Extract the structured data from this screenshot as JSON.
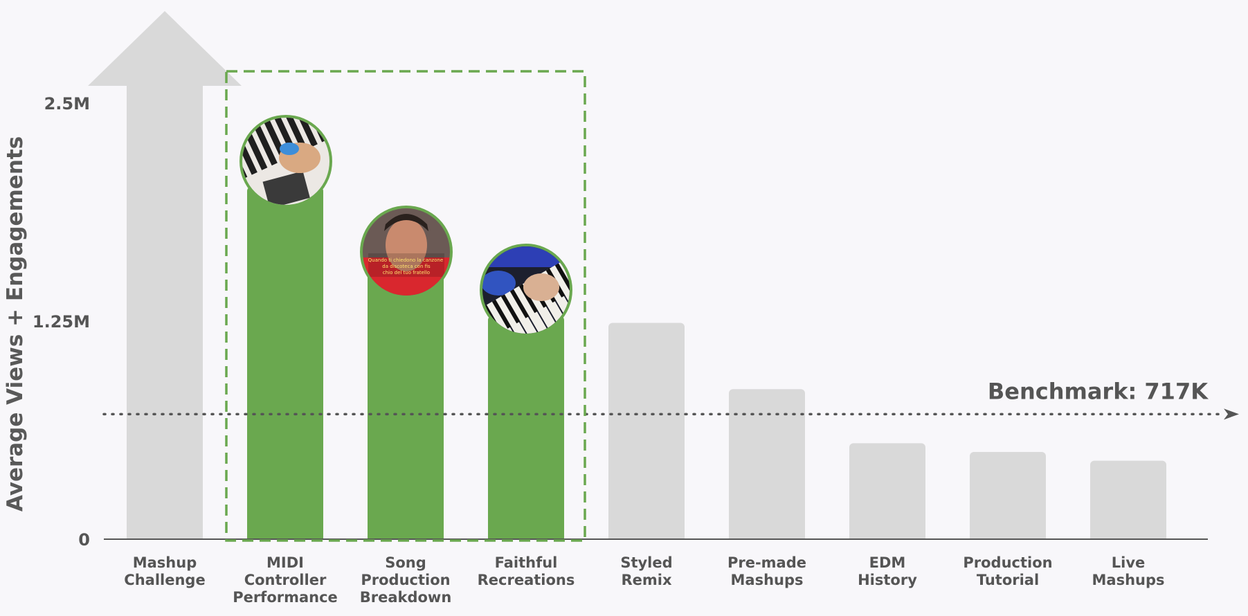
{
  "chart_data": {
    "type": "bar",
    "categories": [
      [
        "Mashup",
        "Challenge"
      ],
      [
        "MIDI",
        "Controller",
        "Performance"
      ],
      [
        "Song",
        "Production",
        "Breakdown"
      ],
      [
        "Faithful",
        "Recreations"
      ],
      [
        "Styled",
        "Remix"
      ],
      [
        "Pre-made",
        "Mashups"
      ],
      [
        "EDM",
        "History"
      ],
      [
        "Production",
        "Tutorial"
      ],
      [
        "Live",
        "Mashups"
      ]
    ],
    "values": [
      3000000,
      2020000,
      1550000,
      1280000,
      1240000,
      860000,
      550000,
      500000,
      450000
    ],
    "highlighted": [
      false,
      true,
      true,
      true,
      false,
      false,
      false,
      false,
      false
    ],
    "off_scale": [
      true,
      false,
      false,
      false,
      false,
      false,
      false,
      false,
      false
    ],
    "thumbnail_icons": [
      "",
      "piano-keys-photo",
      "creator-face-photo",
      "keyboard-hand-photo",
      "",
      "",
      "",
      "",
      ""
    ],
    "thumbnail_caption": "Quando ti chiedono la canzone da discoteca con fischio del tuo fratello",
    "xlabel": "",
    "ylabel": "Average Views + Engagements",
    "yticks": [
      {
        "value": 0,
        "label": "0"
      },
      {
        "value": 1250000,
        "label": "1.25M"
      },
      {
        "value": 2500000,
        "label": "2.5M"
      }
    ],
    "ylim": [
      0,
      2500000
    ],
    "benchmark": {
      "value": 717000,
      "label": "Benchmark: 717K"
    },
    "grid": false,
    "legend": "none",
    "colors": {
      "highlight": "#6aa84f",
      "muted": "#d9d9d9",
      "text": "#555555",
      "axis": "#555555",
      "highlight_box": "#6aa84f",
      "background": "#f8f7fa"
    }
  }
}
